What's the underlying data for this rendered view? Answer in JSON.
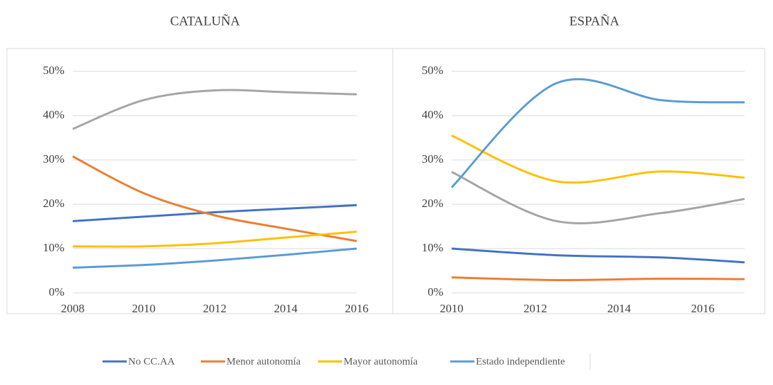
{
  "chart_data": [
    {
      "type": "line",
      "title": "CATALUÑA",
      "x": [
        2008,
        2010,
        2012,
        2014,
        2016
      ],
      "xlim": [
        2008,
        2016
      ],
      "xticks": [
        2008,
        2010,
        2012,
        2014,
        2016
      ],
      "ylim": [
        0,
        50
      ],
      "yticks": [
        {
          "value": 0,
          "label": "0%"
        },
        {
          "value": 10,
          "label": "10%"
        },
        {
          "value": 20,
          "label": "20%"
        },
        {
          "value": 30,
          "label": "30%"
        },
        {
          "value": 40,
          "label": "40%"
        },
        {
          "value": 50,
          "label": "50%"
        }
      ],
      "grid": true,
      "series": [
        {
          "name": "No CC.AA",
          "color": "#4472c4",
          "values": [
            16.2,
            17.2,
            18.2,
            19,
            19.8
          ]
        },
        {
          "name": "Menor autonomía",
          "color": "#ed7d31",
          "values": [
            30.8,
            22.5,
            17.5,
            14.5,
            11.7
          ]
        },
        {
          "color": "#a5a5a5",
          "values": [
            37,
            43.5,
            45.7,
            45.3,
            44.8
          ]
        },
        {
          "name": "Mayor autonomía",
          "color": "#ffc000",
          "values": [
            10.5,
            10.5,
            11.2,
            12.5,
            13.8
          ]
        },
        {
          "name": "Estado independiente",
          "color": "#5b9bd5",
          "values": [
            5.7,
            6.3,
            7.3,
            8.6,
            10
          ]
        }
      ]
    },
    {
      "type": "line",
      "title": "ESPAÑA",
      "x": [
        2010,
        2012.5,
        2015,
        2017
      ],
      "xlim": [
        2010,
        2017
      ],
      "xticks": [
        2010,
        2012,
        2014,
        2016
      ],
      "ylim": [
        0,
        50
      ],
      "yticks": [
        {
          "value": 0,
          "label": "0%"
        },
        {
          "value": 10,
          "label": "10%"
        },
        {
          "value": 20,
          "label": "20%"
        },
        {
          "value": 30,
          "label": "30%"
        },
        {
          "value": 40,
          "label": "40%"
        },
        {
          "value": 50,
          "label": "50%"
        }
      ],
      "grid": true,
      "series": [
        {
          "color": "#4472c4",
          "values": [
            10,
            8.5,
            8,
            6.9
          ]
        },
        {
          "color": "#ed7d31",
          "values": [
            3.5,
            2.9,
            3.2,
            3.1
          ]
        },
        {
          "color": "#a5a5a5",
          "values": [
            27.3,
            16.2,
            18,
            21.2
          ]
        },
        {
          "color": "#ffc000",
          "values": [
            35.5,
            25.2,
            27.4,
            26
          ]
        },
        {
          "color": "#5b9bd5",
          "values": [
            23.8,
            47.3,
            43.5,
            43
          ]
        }
      ]
    }
  ]
}
